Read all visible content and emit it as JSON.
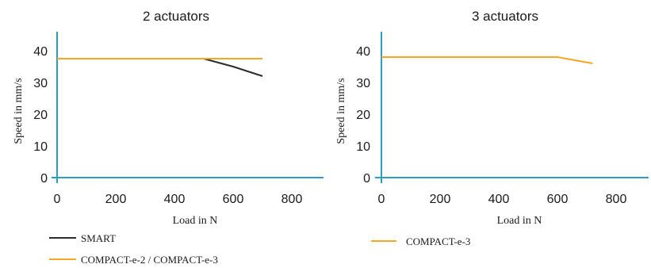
{
  "colors": {
    "axis": "#2a9fc0",
    "smart": "#2b2b2b",
    "compact": "#f5a623"
  },
  "chart_data": [
    {
      "type": "line",
      "title": "2 actuators",
      "xlabel": "Load in N",
      "ylabel": "Speed in mm/s",
      "xlim": [
        0,
        900
      ],
      "ylim": [
        0,
        45
      ],
      "xticks": [
        "0",
        "200",
        "400",
        "600",
        "800"
      ],
      "yticks": [
        "0",
        "10",
        "20",
        "30",
        "40"
      ],
      "series": [
        {
          "name": "SMART",
          "color": "#2b2b2b",
          "x": [
            0,
            500,
            600,
            700
          ],
          "y": [
            37.5,
            37.5,
            35,
            32
          ]
        },
        {
          "name": "COMPACT-e-2 / COMPACT-e-3",
          "color": "#f5a623",
          "x": [
            0,
            700
          ],
          "y": [
            37.5,
            37.5
          ]
        }
      ]
    },
    {
      "type": "line",
      "title": "3 actuators",
      "xlabel": "Load in N",
      "ylabel": "Speed in mm/s",
      "xlim": [
        0,
        900
      ],
      "ylim": [
        0,
        45
      ],
      "xticks": [
        "0",
        "200",
        "400",
        "600",
        "800"
      ],
      "yticks": [
        "0",
        "10",
        "20",
        "30",
        "40"
      ],
      "series": [
        {
          "name": "COMPACT-e-3",
          "color": "#f5a623",
          "x": [
            0,
            600,
            720
          ],
          "y": [
            38,
            38,
            36
          ]
        }
      ]
    }
  ]
}
